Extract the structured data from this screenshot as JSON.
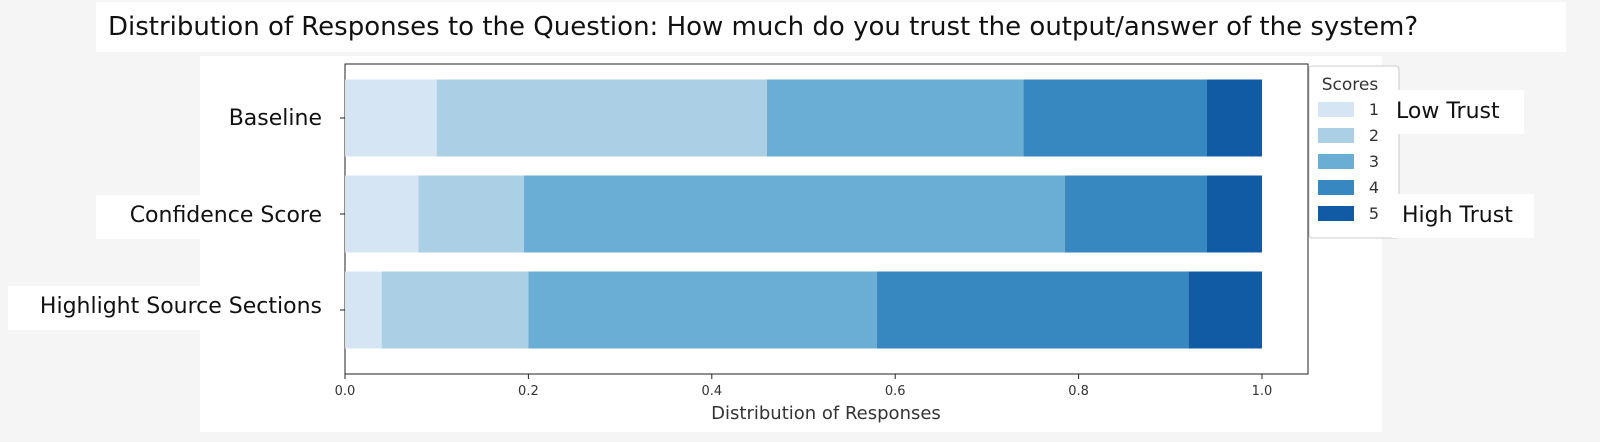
{
  "header": {
    "title": "Distribution of Responses to the Question: How much do you trust the output/answer of the system?"
  },
  "chart_data": {
    "type": "bar",
    "orientation": "horizontal",
    "stacked": true,
    "categories": [
      "Baseline",
      "Confidence Score",
      "Highlight Source Sections"
    ],
    "series": [
      {
        "name": "1",
        "values": [
          0.1,
          0.08,
          0.04
        ],
        "color": "#d5e5f4"
      },
      {
        "name": "2",
        "values": [
          0.36,
          0.115,
          0.16
        ],
        "color": "#abd0e6"
      },
      {
        "name": "3",
        "values": [
          0.28,
          0.59,
          0.38
        ],
        "color": "#6aaed6"
      },
      {
        "name": "4",
        "values": [
          0.2,
          0.155,
          0.34
        ],
        "color": "#3787c0"
      },
      {
        "name": "5",
        "values": [
          0.06,
          0.06,
          0.08
        ],
        "color": "#105ba4"
      }
    ],
    "xlabel": "Distribution of Responses",
    "ylabel": "",
    "xlim": [
      0.0,
      1.05
    ],
    "xticks": [
      "0.0",
      "0.2",
      "0.4",
      "0.6",
      "0.8",
      "1.0"
    ],
    "xtick_values": [
      0.0,
      0.2,
      0.4,
      0.6,
      0.8,
      1.0
    ],
    "legend": {
      "title": "Scores",
      "placement": "right"
    },
    "annotations": {
      "low": "Low Trust",
      "high": "High Trust"
    }
  }
}
